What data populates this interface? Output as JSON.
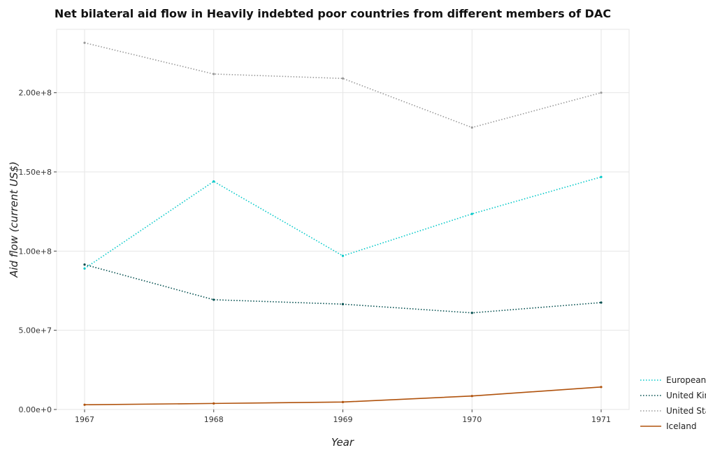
{
  "chart_data": {
    "type": "line",
    "title": "Net bilateral aid flow in Heavily indebted poor countries from different members of DAC",
    "xlabel": "Year",
    "ylabel": "Aid flow (current US$)",
    "categories": [
      "1967",
      "1968",
      "1969",
      "1970",
      "1971"
    ],
    "ylim": [
      0,
      240000000
    ],
    "yticks": [
      0,
      50000000,
      100000000,
      150000000,
      200000000
    ],
    "ytick_labels": [
      "0.00e+0",
      "5.00e+7",
      "1.00e+8",
      "1.50e+8",
      "2.00e+8"
    ],
    "grid": true,
    "legend_position": "bottom-right",
    "series": [
      {
        "name": "European Union",
        "color": "#00c8c8",
        "dash": "dotted",
        "values": [
          89000000,
          144000000,
          97000000,
          123500000,
          146800000
        ]
      },
      {
        "name": "United Kingdom",
        "color": "#004d4d",
        "dash": "dotted",
        "values": [
          91500000,
          69300000,
          66500000,
          61000000,
          67500000
        ]
      },
      {
        "name": "United States",
        "color": "#999999",
        "dash": "dotted",
        "values": [
          231500000,
          211800000,
          209000000,
          178000000,
          200000000
        ]
      },
      {
        "name": "Iceland",
        "color": "#b0520c",
        "dash": "solid",
        "values": [
          3000000,
          3800000,
          4700000,
          8500000,
          14200000
        ]
      }
    ]
  }
}
